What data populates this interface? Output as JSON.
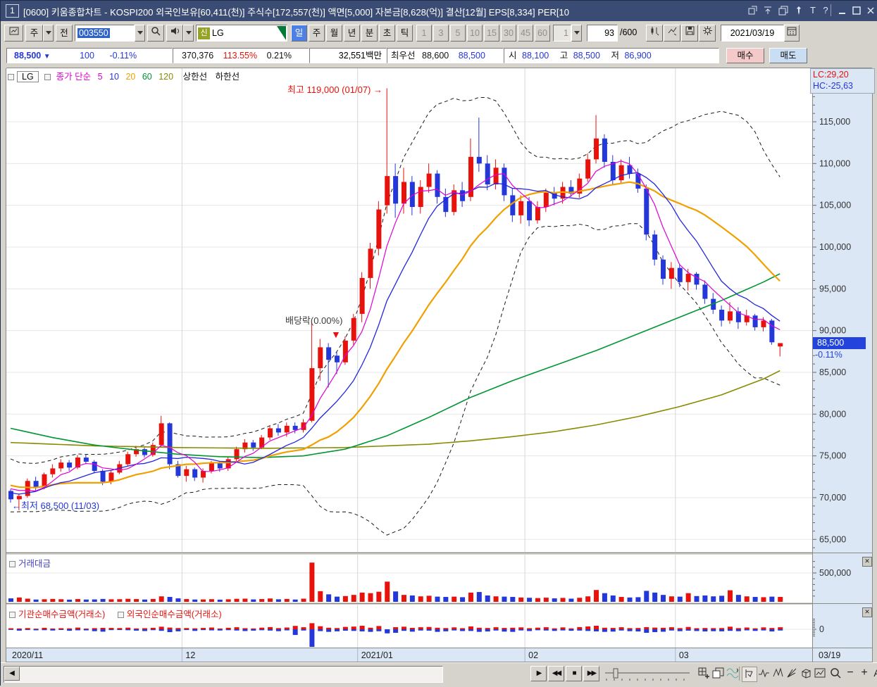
{
  "window": {
    "badge": "1",
    "title": "[0600] 키움종합차트 - KOSPI200 외국인보유[60,411(천)] 주식수[172,557(천)] 액면[5,000] 자본금[8,628(억)] 결산[12월] EPS[8,334] PER[10",
    "icons": [
      "popout",
      "scroll-top",
      "duplicate",
      "pin",
      "text",
      "help",
      "minimize",
      "maximize",
      "close"
    ]
  },
  "toolbar": {
    "week_btn": "주",
    "prev_btn": "전",
    "code": "003550",
    "stock_badge": "신",
    "stock_name": "LG",
    "periods": [
      "일",
      "주",
      "월",
      "년",
      "분",
      "초",
      "틱"
    ],
    "tick_nums": [
      "1",
      "3",
      "5",
      "10",
      "15",
      "30",
      "45",
      "60"
    ],
    "tick_sel": "1",
    "count": "93",
    "count_total": "/600",
    "date": "2021/03/19"
  },
  "pricebar": {
    "price": "88,500",
    "arrow": "▼",
    "change": "100",
    "pct": "-0.11%",
    "volume": "370,376",
    "vol_ratio": "113.55%",
    "turnover": "0.21%",
    "value": "32,551백만",
    "best_label": "최우선",
    "best_ask": "88,600",
    "best_bid": "88,500",
    "open_label": "시",
    "open": "88,100",
    "high_label": "고",
    "high": "88,500",
    "low_label": "저",
    "low": "86,900",
    "buy": "매수",
    "sell": "매도"
  },
  "legend": {
    "stock": "LG",
    "series": "종가 단순",
    "p5": "5",
    "p10": "10",
    "p20": "20",
    "p60": "60",
    "p120": "120",
    "upper": "상한선",
    "lower": "하한선"
  },
  "panels": {
    "vol_title": "거래대금",
    "net_title1": "기관순매수금액(거래소)",
    "net_title2": "외국인순매수금액(거래소)",
    "close_glyph": "✕"
  },
  "bottombar": {
    "scroll_left": "◀",
    "play": "▶",
    "rew": "◀◀",
    "stop": "■",
    "ff": "▶▶",
    "zoom_out": "−",
    "zoom_in": "+",
    "font": "A"
  },
  "chart_data": {
    "type": "candlestick",
    "symbol": "LG",
    "code": "003550",
    "period": "일",
    "lc": "LC:29,20",
    "hc": "HC:-25,63",
    "current_price": "88,500",
    "current_pct": "-0.11%",
    "annotations": {
      "high": "최고 119,000 (01/07) →",
      "div": "배당락(0.00%)",
      "div_arrow": "▼",
      "low": "←최저 68,500 (11/03)"
    },
    "y_axis": {
      "max": 121400,
      "min": 63500,
      "tick_step": 5000,
      "minor_step": 1000,
      "labels": [
        "115,000",
        "110,000",
        "105,000",
        "100,000",
        "95,000",
        "90,000",
        "85,000",
        "80,000",
        "75,000",
        "70,000",
        "65,000"
      ],
      "label_values": [
        115000,
        110000,
        105000,
        100000,
        95000,
        90000,
        85000,
        80000,
        75000,
        70000,
        65000
      ]
    },
    "x_labels": [
      "2020/11",
      "12",
      "2021/01",
      "02",
      "03"
    ],
    "x_end_label": "03/19",
    "month_starts": [
      0,
      21,
      42,
      62,
      80
    ],
    "vol_axis_label": "500,000",
    "vol_axis_value": 500000,
    "net_axis_label": "0",
    "colors": {
      "up": "#e8120c",
      "down": "#2437d8",
      "ma5": "#e000d2",
      "ma10": "#2525e0",
      "ma20": "#f0a000",
      "ma60": "#009632",
      "ma120": "#8a8a00",
      "band": "#1a1a1a",
      "grid": "#e7e7e7",
      "vgrid": "#d6d6d6",
      "axis_bg": "#dbe7f5",
      "axis_text": "#333333"
    },
    "candles": [
      [
        70800,
        71000,
        69400,
        69800
      ],
      [
        69800,
        70500,
        68500,
        70200
      ],
      [
        70200,
        72300,
        70000,
        72000
      ],
      [
        72000,
        72500,
        70800,
        71200
      ],
      [
        71200,
        73000,
        71000,
        72800
      ],
      [
        72800,
        74000,
        72400,
        73500
      ],
      [
        73500,
        74600,
        73100,
        74200
      ],
      [
        74200,
        74500,
        73200,
        73600
      ],
      [
        73600,
        75100,
        73400,
        74800
      ],
      [
        74800,
        75200,
        74000,
        74300
      ],
      [
        74300,
        74500,
        72900,
        73200
      ],
      [
        73200,
        73400,
        71500,
        71900
      ],
      [
        71900,
        73300,
        71600,
        73000
      ],
      [
        73000,
        74400,
        72800,
        74000
      ],
      [
        74000,
        75500,
        73800,
        75200
      ],
      [
        75200,
        76200,
        74900,
        75800
      ],
      [
        75800,
        76000,
        74800,
        75100
      ],
      [
        75100,
        76600,
        74900,
        76300
      ],
      [
        76300,
        79800,
        76100,
        78900
      ],
      [
        78900,
        79000,
        73400,
        74000
      ],
      [
        74000,
        74400,
        72400,
        72600
      ],
      [
        72600,
        73800,
        71900,
        73400
      ],
      [
        73400,
        73600,
        72000,
        72400
      ],
      [
        72400,
        73500,
        71800,
        73200
      ],
      [
        73200,
        74400,
        72900,
        74100
      ],
      [
        74100,
        74300,
        73100,
        73500
      ],
      [
        73500,
        74900,
        73200,
        74600
      ],
      [
        74600,
        76100,
        74300,
        75800
      ],
      [
        75800,
        77000,
        75400,
        76600
      ],
      [
        76600,
        76900,
        75600,
        76000
      ],
      [
        76000,
        77500,
        75800,
        77200
      ],
      [
        77200,
        78600,
        76900,
        78300
      ],
      [
        78300,
        78800,
        77400,
        77800
      ],
      [
        77800,
        79000,
        77300,
        78600
      ],
      [
        78600,
        79000,
        77700,
        78100
      ],
      [
        78100,
        79400,
        77800,
        79000
      ],
      [
        79200,
        91000,
        79000,
        85500
      ],
      [
        85500,
        89000,
        84000,
        88000
      ],
      [
        88000,
        88500,
        83200,
        86500
      ],
      [
        87000,
        87500,
        84800,
        86200
      ],
      [
        86200,
        89300,
        85900,
        88800
      ],
      [
        88800,
        92000,
        88300,
        91500
      ],
      [
        92000,
        97000,
        91000,
        96300
      ],
      [
        96300,
        100500,
        95000,
        99800
      ],
      [
        99800,
        105500,
        99000,
        104500
      ],
      [
        105000,
        119000,
        104000,
        108500
      ],
      [
        108500,
        110000,
        103500,
        105200
      ],
      [
        105200,
        109500,
        104000,
        107800
      ],
      [
        107800,
        108500,
        103800,
        104800
      ],
      [
        104800,
        108000,
        104000,
        107200
      ],
      [
        107200,
        110000,
        106500,
        108800
      ],
      [
        108800,
        109200,
        105200,
        106000
      ],
      [
        106000,
        107000,
        103600,
        104200
      ],
      [
        104200,
        107500,
        103800,
        106800
      ],
      [
        106800,
        107800,
        104800,
        105500
      ],
      [
        106000,
        113000,
        105500,
        110800
      ],
      [
        110800,
        115500,
        109000,
        110000
      ],
      [
        110000,
        111000,
        106800,
        107500
      ],
      [
        107500,
        110500,
        106900,
        109500
      ],
      [
        109500,
        110000,
        105500,
        106200
      ],
      [
        106200,
        107000,
        103000,
        103800
      ],
      [
        103800,
        106200,
        102800,
        105500
      ],
      [
        105500,
        106000,
        102500,
        103200
      ],
      [
        103200,
        105500,
        102800,
        104800
      ],
      [
        104800,
        107000,
        104200,
        106500
      ],
      [
        106500,
        107200,
        105000,
        105800
      ],
      [
        105800,
        107800,
        105200,
        107200
      ],
      [
        107200,
        108000,
        106000,
        106400
      ],
      [
        106400,
        108800,
        105900,
        108200
      ],
      [
        108200,
        111200,
        107800,
        110500
      ],
      [
        110500,
        115800,
        110000,
        113000
      ],
      [
        113000,
        113500,
        109500,
        110200
      ],
      [
        110200,
        111000,
        107500,
        108000
      ],
      [
        108000,
        110500,
        107600,
        109800
      ],
      [
        109800,
        110800,
        108200,
        108800
      ],
      [
        108800,
        109400,
        106500,
        107000
      ],
      [
        107000,
        107500,
        100800,
        101500
      ],
      [
        101500,
        102000,
        97800,
        98500
      ],
      [
        98500,
        99000,
        95500,
        96200
      ],
      [
        96200,
        98200,
        95000,
        97500
      ],
      [
        97500,
        98000,
        95200,
        95800
      ],
      [
        95800,
        97400,
        94800,
        96800
      ],
      [
        96800,
        97000,
        94900,
        95500
      ],
      [
        95500,
        96000,
        93200,
        93800
      ],
      [
        93800,
        94500,
        92000,
        92500
      ],
      [
        92500,
        93000,
        90500,
        91200
      ],
      [
        91200,
        93400,
        90800,
        92300
      ],
      [
        92300,
        92800,
        90200,
        91000
      ],
      [
        91000,
        92500,
        90600,
        91800
      ],
      [
        91800,
        92000,
        90000,
        90400
      ],
      [
        90400,
        91600,
        89900,
        91200
      ],
      [
        91200,
        91400,
        88300,
        88600
      ],
      [
        88100,
        88500,
        86900,
        88500
      ]
    ],
    "volumes": [
      60000,
      75000,
      55000,
      40000,
      45000,
      50000,
      45000,
      38000,
      48000,
      40000,
      42000,
      50000,
      44000,
      46000,
      52000,
      48000,
      40000,
      50000,
      95000,
      85000,
      60000,
      48000,
      40000,
      42000,
      46000,
      38000,
      44000,
      52000,
      55000,
      42000,
      48000,
      58000,
      44000,
      50000,
      40000,
      55000,
      680000,
      185000,
      130000,
      90000,
      100000,
      120000,
      160000,
      150000,
      175000,
      350000,
      180000,
      120000,
      110000,
      95000,
      105000,
      90000,
      85000,
      90000,
      80000,
      160000,
      170000,
      110000,
      95000,
      90000,
      85000,
      75000,
      70000,
      65000,
      72000,
      60000,
      68000,
      55000,
      70000,
      95000,
      205000,
      150000,
      110000,
      85000,
      75000,
      80000,
      190000,
      160000,
      120000,
      95000,
      90000,
      150000,
      100000,
      110000,
      95000,
      105000,
      200000,
      120000,
      95000,
      85000,
      80000,
      90000,
      85000
    ],
    "inst": [
      150,
      -200,
      180,
      -150,
      220,
      -180,
      160,
      -220,
      250,
      -160,
      -280,
      -350,
      200,
      180,
      240,
      -200,
      -260,
      220,
      380,
      -420,
      -300,
      180,
      -240,
      200,
      260,
      -180,
      220,
      300,
      -260,
      -200,
      240,
      320,
      -280,
      260,
      -840,
      300,
      -2600,
      450,
      -380,
      -300,
      350,
      400,
      520,
      -380,
      480,
      -450,
      -520,
      380,
      -350,
      300,
      340,
      -380,
      -300,
      280,
      -260,
      420,
      -380,
      -320,
      300,
      -340,
      -380,
      280,
      -260,
      240,
      300,
      -240,
      280,
      -220,
      320,
      420,
      520,
      -380,
      -340,
      300,
      -280,
      -320,
      -520,
      -420,
      -360,
      300,
      -280,
      340,
      -260,
      -320,
      -280,
      -300,
      380,
      -280,
      260,
      -240,
      280,
      -320,
      300
    ],
    "foreign": [
      -90,
      120,
      -110,
      90,
      -130,
      110,
      -100,
      130,
      -150,
      100,
      170,
      210,
      -120,
      -110,
      -140,
      120,
      160,
      -130,
      -230,
      250,
      180,
      -110,
      140,
      -120,
      -160,
      110,
      -130,
      -180,
      160,
      120,
      -140,
      -190,
      170,
      -160,
      500,
      -180,
      900,
      -270,
      230,
      180,
      -210,
      -240,
      -310,
      230,
      -290,
      -600,
      310,
      -230,
      210,
      -180,
      -200,
      230,
      180,
      -170,
      160,
      -250,
      230,
      190,
      -180,
      200,
      230,
      -170,
      160,
      -140,
      -180,
      140,
      -170,
      130,
      -190,
      -250,
      -310,
      230,
      200,
      -180,
      170,
      190,
      310,
      250,
      220,
      -180,
      170,
      -200,
      160,
      190,
      170,
      180,
      -230,
      170,
      -160,
      140,
      -170,
      190,
      -180
    ],
    "pre_closes": [
      73500,
      74200,
      72800,
      71500,
      70200,
      69800,
      71000,
      72500,
      73800,
      74500,
      73200,
      71800,
      70500,
      69500,
      68900,
      69800,
      71200,
      72000,
      71500,
      70800
    ],
    "ma60_points": [
      [
        0,
        78300
      ],
      [
        5,
        77200
      ],
      [
        10,
        76300
      ],
      [
        15,
        75700
      ],
      [
        20,
        75200
      ],
      [
        25,
        74900
      ],
      [
        30,
        74800
      ],
      [
        35,
        75000
      ],
      [
        40,
        75800
      ],
      [
        45,
        77400
      ],
      [
        50,
        79600
      ],
      [
        55,
        82000
      ],
      [
        60,
        84000
      ],
      [
        65,
        85800
      ],
      [
        70,
        87600
      ],
      [
        75,
        89600
      ],
      [
        80,
        91600
      ],
      [
        85,
        93600
      ],
      [
        90,
        95800
      ],
      [
        92,
        96800
      ]
    ],
    "ma120_points": [
      [
        0,
        76600
      ],
      [
        10,
        76200
      ],
      [
        20,
        76000
      ],
      [
        30,
        75900
      ],
      [
        40,
        76000
      ],
      [
        50,
        76400
      ],
      [
        55,
        76800
      ],
      [
        60,
        77300
      ],
      [
        65,
        77900
      ],
      [
        70,
        78700
      ],
      [
        75,
        79700
      ],
      [
        80,
        80900
      ],
      [
        85,
        82300
      ],
      [
        90,
        84200
      ],
      [
        92,
        85200
      ]
    ]
  }
}
